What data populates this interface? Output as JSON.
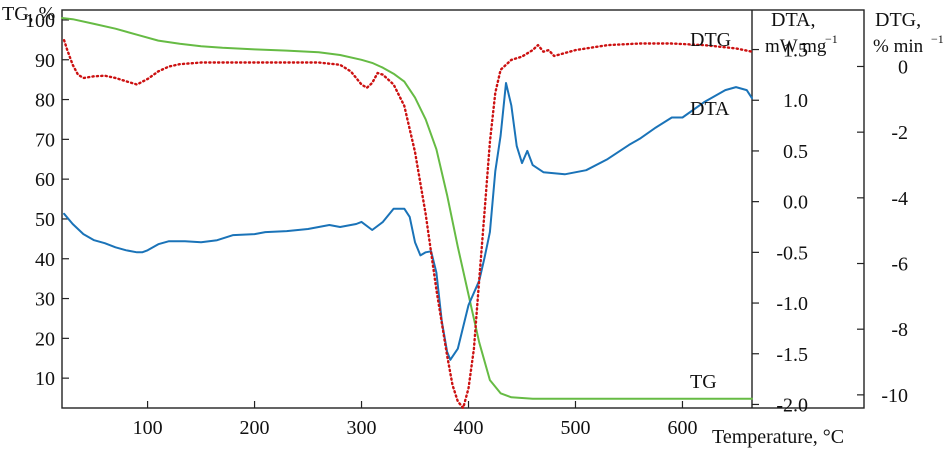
{
  "chart_data": {
    "type": "line",
    "xlabel": "Temperature, °C",
    "xlim": [
      20,
      665
    ],
    "x_ticks": [
      100,
      200,
      300,
      400,
      500,
      600
    ],
    "axes": {
      "tg": {
        "title": "TG, %",
        "ylim": [
          2.5,
          102.5
        ],
        "ticks": [
          10,
          20,
          30,
          40,
          50,
          60,
          70,
          80,
          90,
          100
        ],
        "position": "left"
      },
      "dta": {
        "title": "DTA,",
        "subtitle": "mW mg",
        "sup": "−1",
        "ylim": [
          -2.035,
          1.89
        ],
        "ticks": [
          "1.5",
          "1.0",
          "0.5",
          "0.0",
          "-0.5",
          "-1.0",
          "-1.5",
          "-2.0"
        ],
        "tick_values": [
          1.5,
          1.0,
          0.5,
          0.0,
          -0.5,
          -1.0,
          -1.5,
          -2.0
        ],
        "position": "right-inner"
      },
      "dtg": {
        "title": "DTG,",
        "subtitle": "% min",
        "sup": "−1",
        "ylim": [
          -10.4,
          1.72
        ],
        "ticks": [
          "0",
          "-2",
          "-4",
          "-6",
          "-8",
          "-10"
        ],
        "tick_values": [
          0,
          -2,
          -4,
          -6,
          -8,
          -10
        ],
        "position": "right-outer"
      }
    },
    "grid": false,
    "series": [
      {
        "name": "TG",
        "axis": "tg",
        "color": "#66bb44",
        "style": "solid",
        "x": [
          20,
          30,
          50,
          70,
          90,
          110,
          130,
          150,
          170,
          200,
          230,
          260,
          280,
          300,
          310,
          320,
          330,
          340,
          350,
          360,
          370,
          380,
          390,
          400,
          410,
          420,
          430,
          440,
          460,
          500,
          550,
          600,
          665
        ],
        "y": [
          100.5,
          100.2,
          99.0,
          97.8,
          96.3,
          94.8,
          94.0,
          93.4,
          93.0,
          92.6,
          92.3,
          91.9,
          91.2,
          90.0,
          89.2,
          88.0,
          86.5,
          84.5,
          80.5,
          75.0,
          67.5,
          56.0,
          43.0,
          31.0,
          19.0,
          9.5,
          6.2,
          5.2,
          4.8,
          4.8,
          4.8,
          4.8,
          4.8
        ]
      },
      {
        "name": "DTA",
        "axis": "dta",
        "color": "#1a73b8",
        "style": "solid",
        "x": [
          22,
          30,
          40,
          50,
          60,
          70,
          80,
          90,
          95,
          100,
          110,
          120,
          135,
          150,
          165,
          180,
          200,
          210,
          230,
          250,
          260,
          270,
          280,
          290,
          295,
          300,
          310,
          320,
          330,
          340,
          345,
          350,
          355,
          360,
          365,
          370,
          375,
          380,
          383,
          390,
          400,
          410,
          415,
          420,
          425,
          430,
          435,
          440,
          445,
          450,
          455,
          460,
          470,
          490,
          510,
          530,
          550,
          560,
          575,
          590,
          600,
          620,
          640,
          650,
          660,
          665
        ],
        "y": [
          -0.12,
          -0.22,
          -0.32,
          -0.38,
          -0.41,
          -0.45,
          -0.48,
          -0.5,
          -0.5,
          -0.48,
          -0.42,
          -0.39,
          -0.39,
          -0.4,
          -0.38,
          -0.33,
          -0.32,
          -0.3,
          -0.29,
          -0.27,
          -0.25,
          -0.23,
          -0.25,
          -0.23,
          -0.22,
          -0.2,
          -0.28,
          -0.2,
          -0.07,
          -0.07,
          -0.15,
          -0.4,
          -0.53,
          -0.5,
          -0.49,
          -0.7,
          -1.18,
          -1.48,
          -1.56,
          -1.45,
          -1.02,
          -0.78,
          -0.55,
          -0.3,
          0.3,
          0.65,
          1.17,
          0.95,
          0.55,
          0.38,
          0.5,
          0.36,
          0.29,
          0.27,
          0.31,
          0.42,
          0.56,
          0.62,
          0.73,
          0.83,
          0.83,
          0.98,
          1.1,
          1.13,
          1.1,
          1.02
        ]
      },
      {
        "name": "DTG",
        "axis": "dtg",
        "color": "#cc1111",
        "style": "dotted",
        "x": [
          22,
          25,
          30,
          35,
          40,
          50,
          60,
          70,
          80,
          90,
          100,
          110,
          120,
          130,
          150,
          170,
          200,
          230,
          260,
          280,
          290,
          300,
          305,
          310,
          315,
          320,
          330,
          340,
          350,
          360,
          370,
          380,
          385,
          390,
          395,
          400,
          405,
          410,
          415,
          420,
          425,
          430,
          440,
          450,
          460,
          465,
          470,
          475,
          480,
          500,
          530,
          560,
          590,
          620,
          650,
          665
        ],
        "y": [
          0.8,
          0.5,
          0.05,
          -0.25,
          -0.35,
          -0.3,
          -0.28,
          -0.35,
          -0.45,
          -0.55,
          -0.38,
          -0.15,
          0.0,
          0.07,
          0.12,
          0.12,
          0.12,
          0.12,
          0.12,
          0.05,
          -0.15,
          -0.55,
          -0.65,
          -0.5,
          -0.2,
          -0.25,
          -0.55,
          -1.2,
          -2.6,
          -4.5,
          -6.8,
          -8.8,
          -9.7,
          -10.2,
          -10.4,
          -9.8,
          -8.6,
          -6.5,
          -4.4,
          -2.3,
          -0.8,
          -0.1,
          0.2,
          0.3,
          0.5,
          0.65,
          0.45,
          0.5,
          0.32,
          0.5,
          0.65,
          0.7,
          0.7,
          0.65,
          0.55,
          0.45
        ]
      }
    ]
  }
}
